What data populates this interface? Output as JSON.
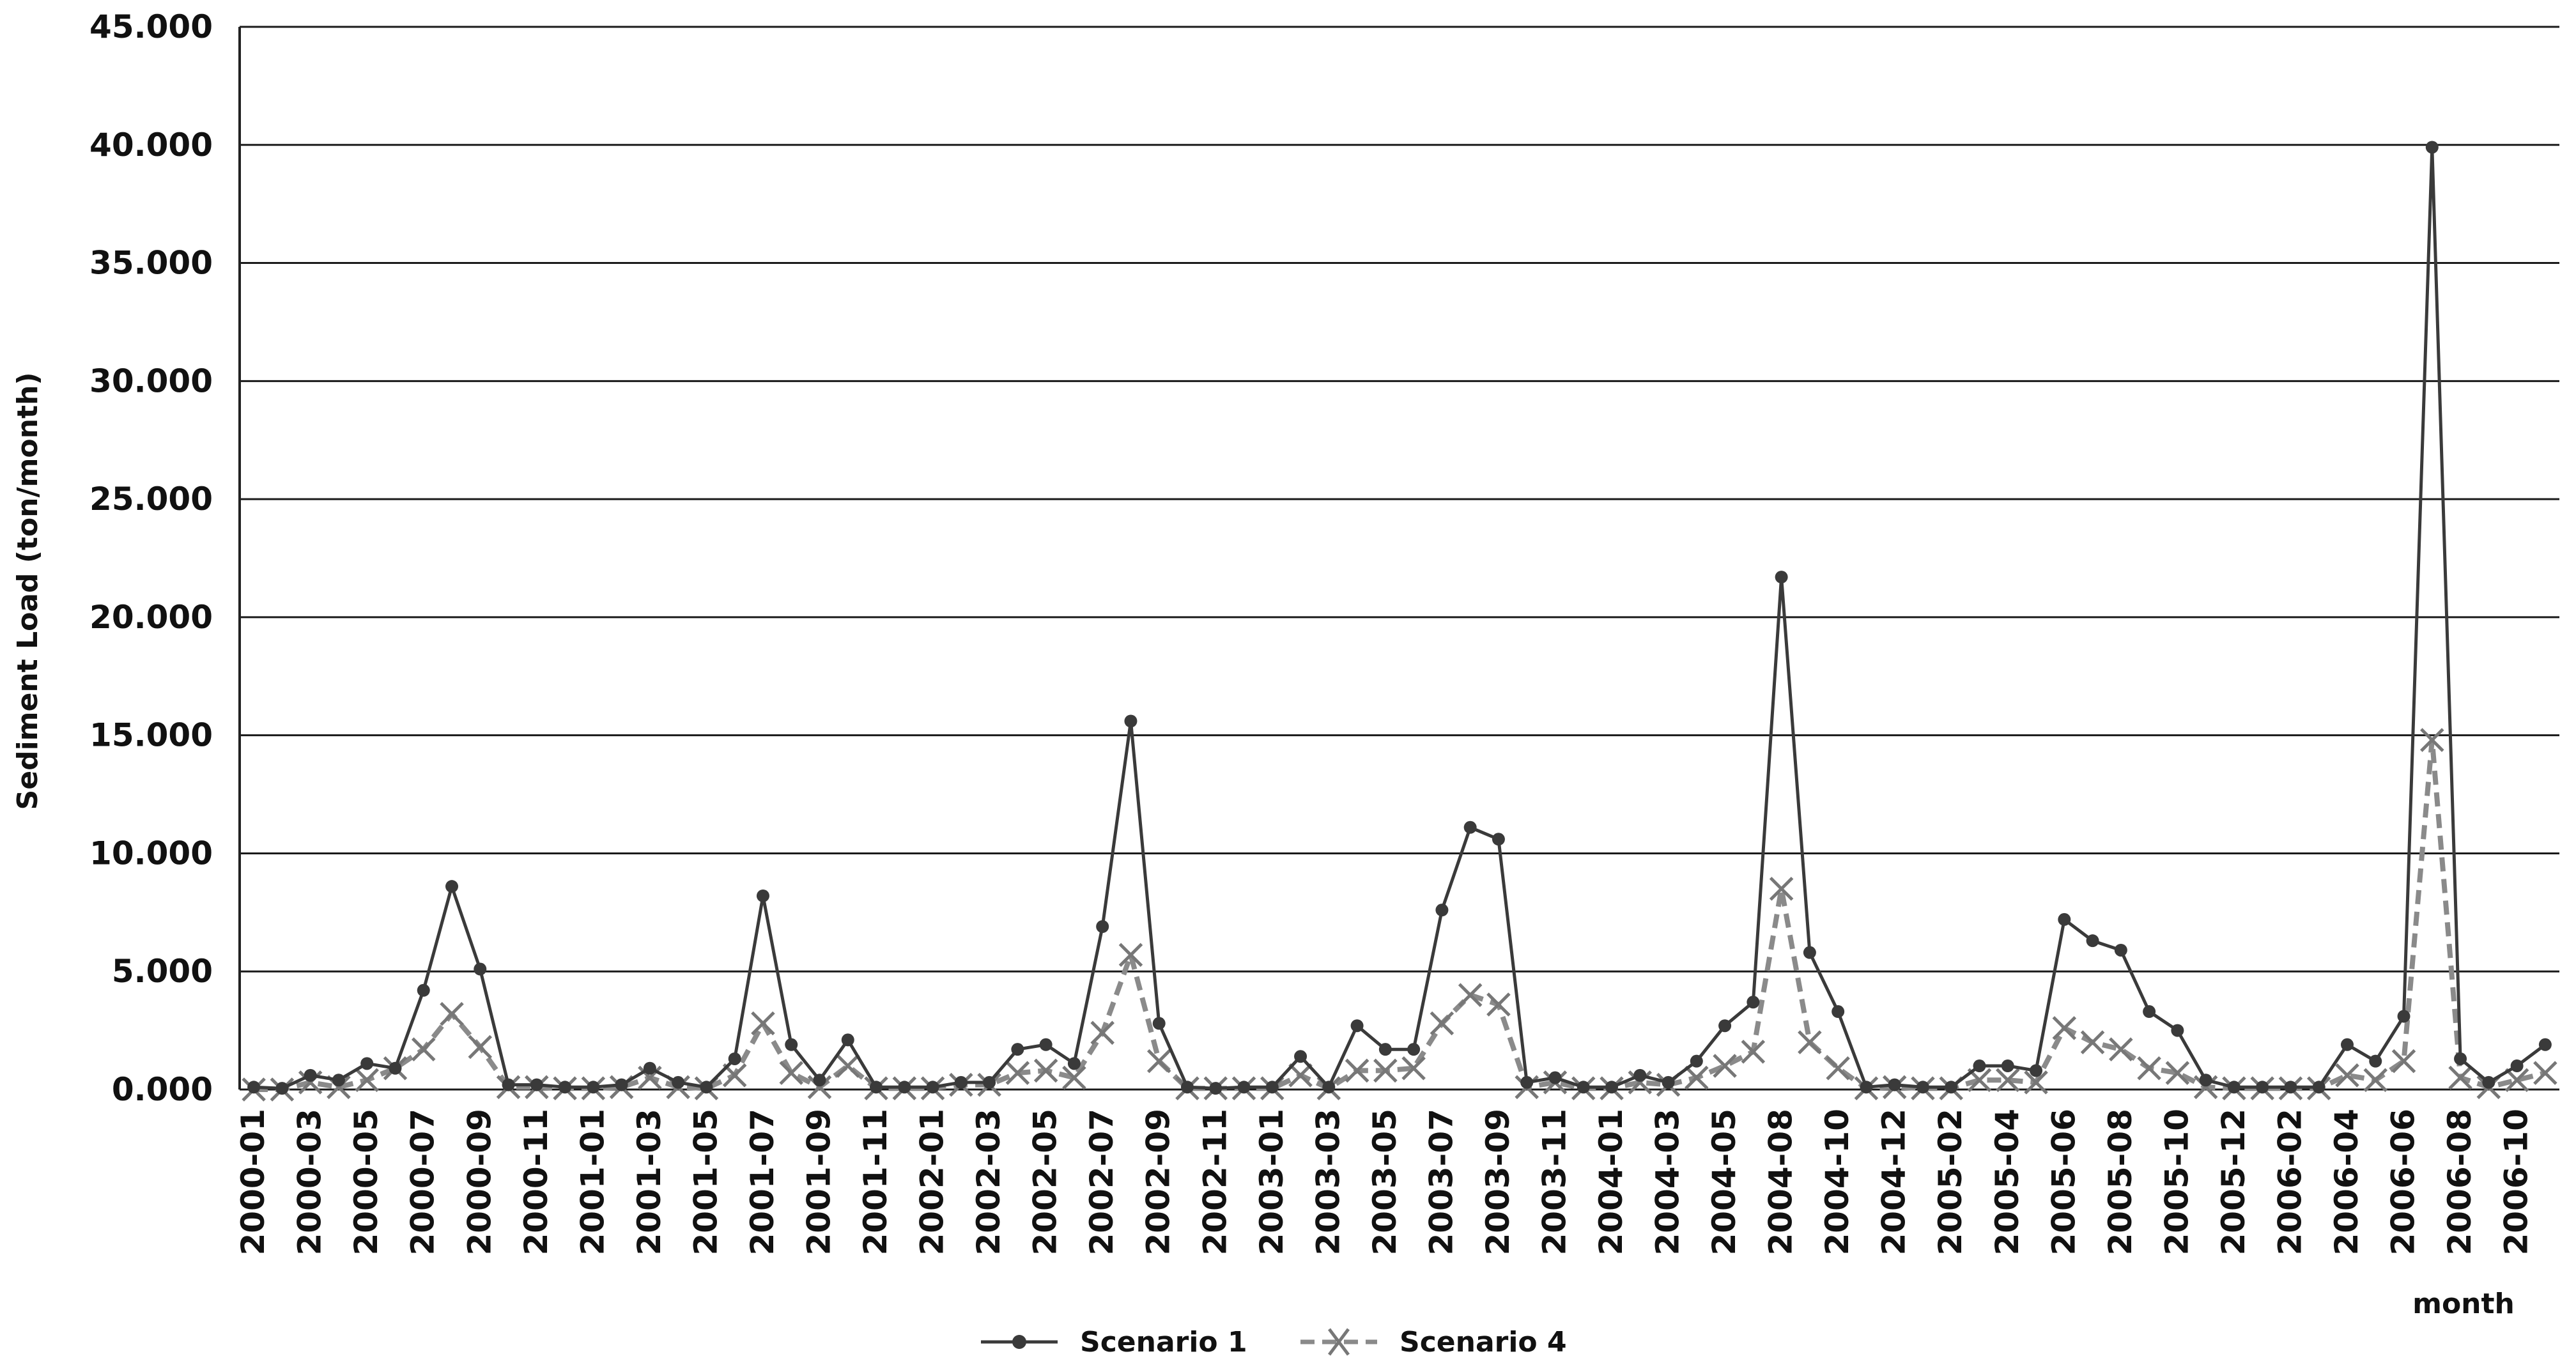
{
  "chart_data": {
    "type": "line",
    "title": "",
    "xlabel": "month",
    "ylabel": "Sediment Load (ton/month)",
    "ylim": [
      0,
      45000
    ],
    "y_ticks": [
      "0.000",
      "5.000",
      "10.000",
      "15.000",
      "20.000",
      "25.000",
      "30.000",
      "35.000",
      "40.000",
      "45.000"
    ],
    "x_tick_labels": [
      "2000-01",
      "2000-03",
      "2000-05",
      "2000-07",
      "2000-09",
      "2000-11",
      "2001-01",
      "2001-03",
      "2001-05",
      "2001-07",
      "2001-09",
      "2001-11",
      "2002-01",
      "2002-03",
      "2002-05",
      "2002-07",
      "2002-09",
      "2002-11",
      "2003-01",
      "2003-03",
      "2003-05",
      "2003-07",
      "2003-09",
      "2003-11",
      "2004-01",
      "2004-03",
      "2004-05",
      "2004-08",
      "2004-10",
      "2004-12",
      "2005-02",
      "2005-04",
      "2005-06",
      "2005-08",
      "2005-10",
      "2005-12",
      "2006-02",
      "2006-04",
      "2006-06",
      "2006-08",
      "2006-10"
    ],
    "grid": true,
    "legend_position": "bottom",
    "categories": [
      "2000-01",
      "2000-02",
      "2000-03",
      "2000-04",
      "2000-05",
      "2000-06",
      "2000-07",
      "2000-08",
      "2000-09",
      "2000-10",
      "2000-11",
      "2000-12",
      "2001-01",
      "2001-02",
      "2001-03",
      "2001-04",
      "2001-05",
      "2001-06",
      "2001-07",
      "2001-08",
      "2001-09",
      "2001-10",
      "2001-11",
      "2001-12",
      "2002-01",
      "2002-02",
      "2002-03",
      "2002-04",
      "2002-05",
      "2002-06",
      "2002-07",
      "2002-08",
      "2002-09",
      "2002-10",
      "2002-11",
      "2002-12",
      "2003-01",
      "2003-02",
      "2003-03",
      "2003-04",
      "2003-05",
      "2003-06",
      "2003-07",
      "2003-08",
      "2003-09",
      "2003-10",
      "2003-11",
      "2003-12",
      "2004-01",
      "2004-02",
      "2004-03",
      "2004-04",
      "2004-05",
      "2004-06",
      "2004-08",
      "2004-09",
      "2004-10",
      "2004-11",
      "2004-12",
      "2005-01",
      "2005-02",
      "2005-03",
      "2005-04",
      "2005-05",
      "2005-06",
      "2005-07",
      "2005-08",
      "2005-09",
      "2005-10",
      "2005-11",
      "2005-12",
      "2006-01",
      "2006-02",
      "2006-03",
      "2006-04",
      "2006-05",
      "2006-06",
      "2006-07",
      "2006-08",
      "2006-09",
      "2006-10",
      "2006-11"
    ],
    "series": [
      {
        "name": "Scenario 1",
        "color": "#3a3a3a",
        "marker": "dot",
        "values": [
          100,
          50,
          600,
          400,
          1100,
          900,
          4200,
          8600,
          5100,
          200,
          200,
          100,
          100,
          200,
          900,
          300,
          100,
          1300,
          8200,
          1900,
          400,
          2100,
          100,
          100,
          100,
          300,
          300,
          1700,
          1900,
          1100,
          6900,
          15600,
          2800,
          100,
          50,
          100,
          100,
          1400,
          100,
          2700,
          1700,
          1700,
          7600,
          11100,
          10600,
          300,
          500,
          100,
          100,
          600,
          300,
          1200,
          2700,
          3700,
          21700,
          5800,
          3300,
          100,
          200,
          100,
          100,
          1000,
          1000,
          800,
          7200,
          6300,
          5900,
          3300,
          2500,
          400,
          100,
          100,
          100,
          100,
          1900,
          1200,
          3100,
          39900,
          1300,
          300,
          1000,
          1900
        ]
      },
      {
        "name": "Scenario 4",
        "color": "#8a8a8a",
        "marker": "x",
        "values": [
          0,
          0,
          300,
          100,
          400,
          900,
          1700,
          3200,
          1800,
          100,
          100,
          50,
          50,
          100,
          500,
          100,
          50,
          600,
          2800,
          700,
          100,
          1000,
          50,
          50,
          50,
          200,
          200,
          700,
          800,
          500,
          2400,
          5700,
          1200,
          50,
          50,
          50,
          50,
          600,
          50,
          800,
          800,
          900,
          2800,
          4000,
          3600,
          100,
          300,
          50,
          50,
          300,
          200,
          500,
          1000,
          1600,
          8500,
          2000,
          900,
          50,
          100,
          50,
          50,
          400,
          400,
          300,
          2600,
          2000,
          1700,
          900,
          700,
          100,
          50,
          50,
          50,
          50,
          600,
          400,
          1200,
          14800,
          500,
          100,
          400,
          700
        ]
      }
    ]
  }
}
